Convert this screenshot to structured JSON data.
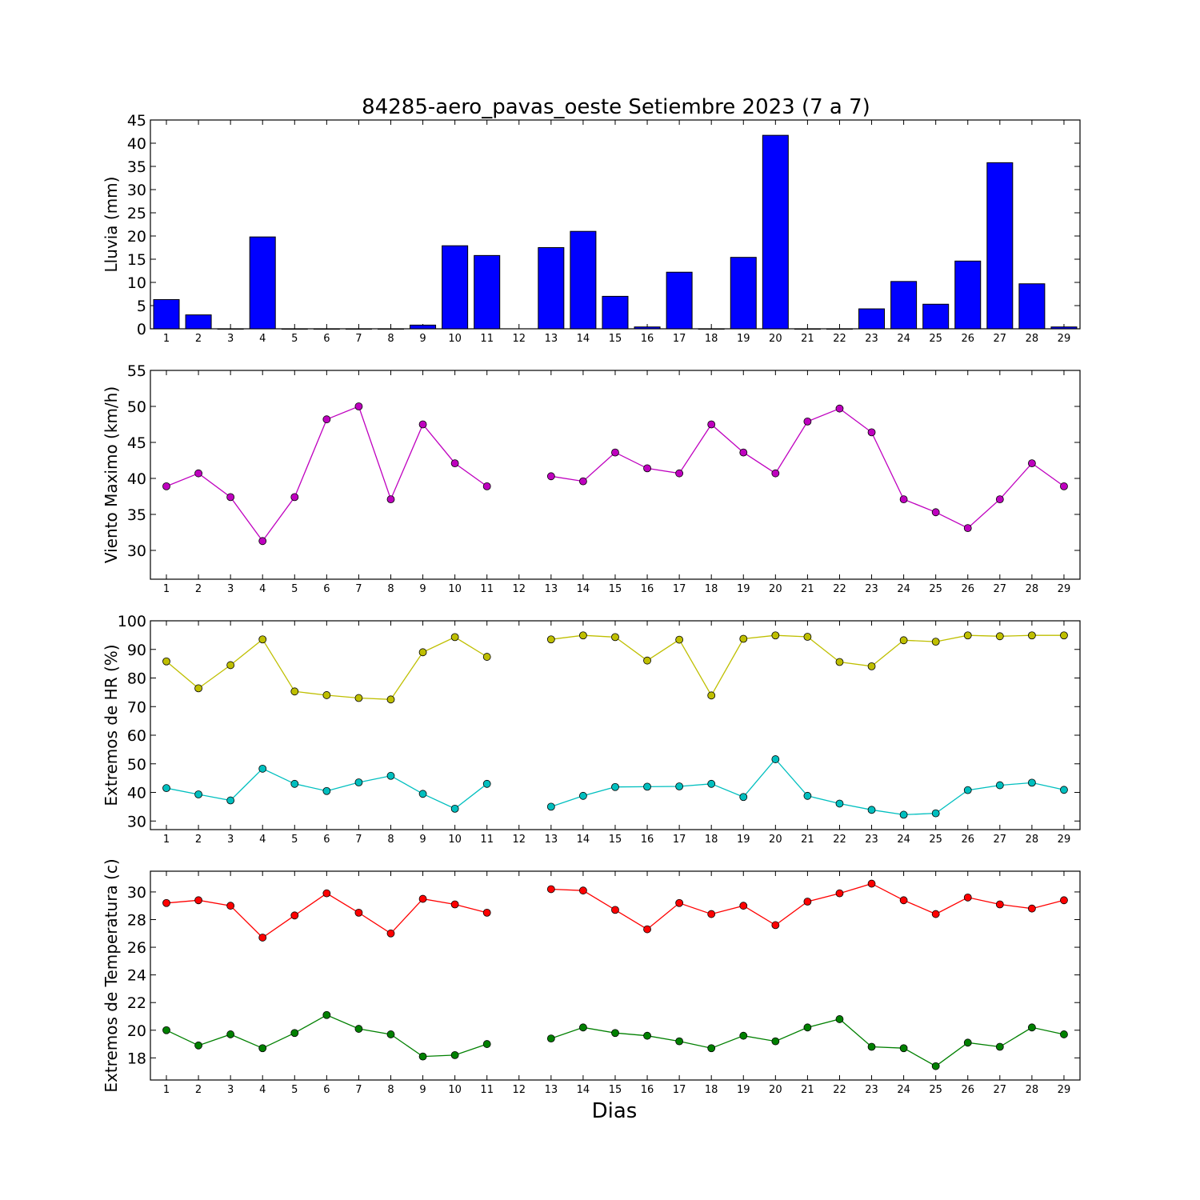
{
  "title": "84285-aero_pavas_oeste Setiembre 2023  (7 a 7)",
  "xlabel": "Dias",
  "chart_data": [
    {
      "type": "bar",
      "ylabel": "Lluvia (mm)",
      "ylim": [
        0,
        45
      ],
      "yticks": [
        0,
        5,
        10,
        15,
        20,
        25,
        30,
        35,
        40,
        45
      ],
      "categories": [
        1,
        2,
        3,
        4,
        5,
        6,
        7,
        8,
        9,
        10,
        11,
        12,
        13,
        14,
        15,
        16,
        17,
        18,
        19,
        20,
        21,
        22,
        23,
        24,
        25,
        26,
        27,
        28,
        29
      ],
      "series": [
        {
          "color": "#0000ff",
          "values": [
            6.3,
            3.0,
            0,
            19.8,
            0,
            0,
            0,
            0,
            0.8,
            17.9,
            15.8,
            null,
            17.5,
            21.0,
            7.0,
            0.4,
            12.2,
            0,
            15.4,
            41.7,
            0,
            0,
            4.3,
            10.2,
            5.3,
            14.6,
            35.8,
            9.7,
            0.4
          ]
        }
      ]
    },
    {
      "type": "line",
      "ylabel": "Viento Maximo (km/h)",
      "ylim": [
        26,
        55
      ],
      "yticks": [
        30,
        35,
        40,
        45,
        50,
        55
      ],
      "categories": [
        1,
        2,
        3,
        4,
        5,
        6,
        7,
        8,
        9,
        10,
        11,
        12,
        13,
        14,
        15,
        16,
        17,
        18,
        19,
        20,
        21,
        22,
        23,
        24,
        25,
        26,
        27,
        28,
        29
      ],
      "series": [
        {
          "color": "#bf00bf",
          "values": [
            38.9,
            40.7,
            37.4,
            31.3,
            37.4,
            48.2,
            50.0,
            37.1,
            47.5,
            42.1,
            38.9,
            null,
            40.3,
            39.6,
            43.6,
            41.4,
            40.7,
            47.5,
            43.6,
            40.7,
            47.9,
            49.7,
            46.4,
            37.1,
            35.3,
            33.1,
            37.1,
            42.1,
            38.9
          ]
        }
      ]
    },
    {
      "type": "line",
      "ylabel": "Extremos de HR (%)",
      "ylim": [
        27,
        100
      ],
      "yticks": [
        30,
        40,
        50,
        60,
        70,
        80,
        90,
        100
      ],
      "categories": [
        1,
        2,
        3,
        4,
        5,
        6,
        7,
        8,
        9,
        10,
        11,
        12,
        13,
        14,
        15,
        16,
        17,
        18,
        19,
        20,
        21,
        22,
        23,
        24,
        25,
        26,
        27,
        28,
        29
      ],
      "series": [
        {
          "color": "#bfbf00",
          "values": [
            85.8,
            76.4,
            84.5,
            93.5,
            75.3,
            74.0,
            73.0,
            72.5,
            89.0,
            94.3,
            87.4,
            null,
            93.5,
            94.9,
            94.3,
            86.1,
            93.4,
            73.9,
            93.7,
            94.9,
            94.4,
            85.6,
            84.1,
            93.2,
            92.7,
            94.9,
            94.6,
            94.9,
            94.9
          ]
        },
        {
          "color": "#00bfbf",
          "values": [
            41.5,
            39.3,
            37.2,
            48.3,
            43.0,
            40.5,
            43.5,
            45.8,
            39.5,
            34.3,
            43.0,
            null,
            35.0,
            38.8,
            41.9,
            42.0,
            42.1,
            43.0,
            38.4,
            51.6,
            38.8,
            36.1,
            33.9,
            32.2,
            32.7,
            40.8,
            42.5,
            43.4,
            40.9
          ]
        }
      ]
    },
    {
      "type": "line",
      "ylabel": "Extremos de Temperatura (c)",
      "ylim": [
        16.4,
        31.5
      ],
      "yticks": [
        18,
        20,
        22,
        24,
        26,
        28,
        30
      ],
      "categories": [
        1,
        2,
        3,
        4,
        5,
        6,
        7,
        8,
        9,
        10,
        11,
        12,
        13,
        14,
        15,
        16,
        17,
        18,
        19,
        20,
        21,
        22,
        23,
        24,
        25,
        26,
        27,
        28,
        29
      ],
      "series": [
        {
          "color": "#ff0000",
          "values": [
            29.2,
            29.4,
            29.0,
            26.7,
            28.3,
            29.9,
            28.5,
            27.0,
            29.5,
            29.1,
            28.5,
            null,
            30.2,
            30.1,
            28.7,
            27.3,
            29.2,
            28.4,
            29.0,
            27.6,
            29.3,
            29.9,
            30.6,
            29.4,
            28.4,
            29.6,
            29.1,
            28.8,
            29.4
          ]
        },
        {
          "color": "#008000",
          "values": [
            20.0,
            18.9,
            19.7,
            18.7,
            19.8,
            21.1,
            20.1,
            19.7,
            18.1,
            18.2,
            19.0,
            null,
            19.4,
            20.2,
            19.8,
            19.6,
            19.2,
            18.7,
            19.6,
            19.2,
            20.2,
            20.8,
            18.8,
            18.7,
            17.4,
            19.1,
            18.8,
            20.2,
            19.7
          ]
        }
      ]
    }
  ]
}
